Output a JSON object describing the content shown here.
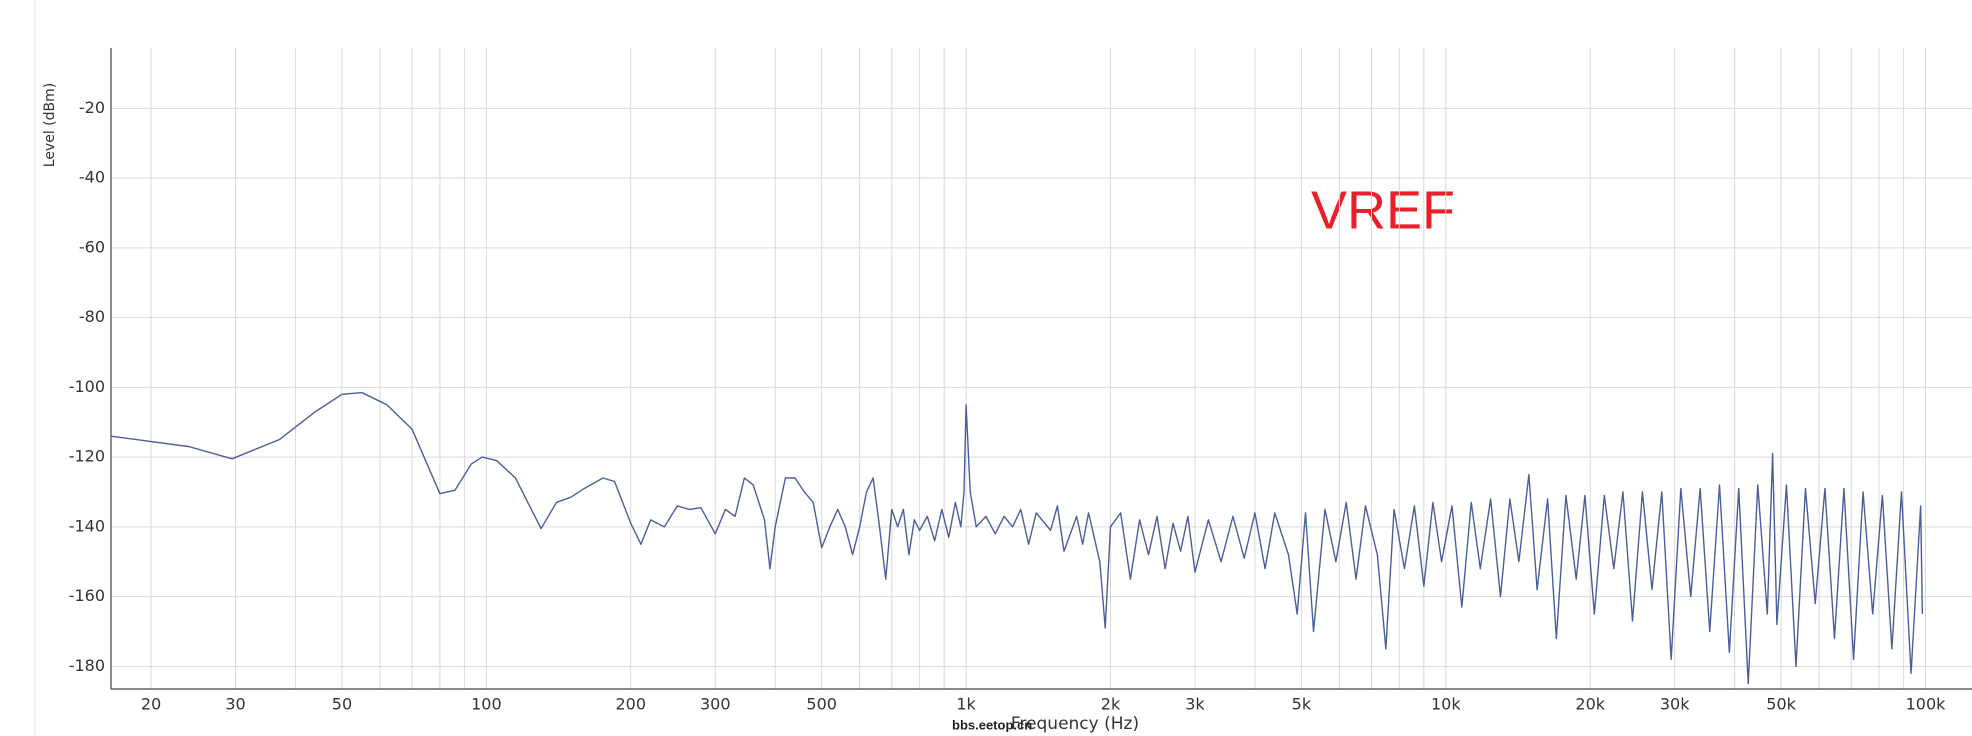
{
  "chart_data": {
    "type": "line",
    "annotation": "VREF",
    "watermark": "bbs.eetop.cn",
    "xlabel": "Frequency (Hz)",
    "ylabel": "Level (dBm)",
    "log_x": true,
    "grid": true,
    "color": "#4a5f9a",
    "annotation_color": "#e8202a",
    "xlim": [
      16.5,
      125000
    ],
    "ylim": [
      -186.5,
      -2.7
    ],
    "xticks": [
      20,
      30,
      50,
      100,
      200,
      300,
      500,
      {
        "value": 1000,
        "label": "1k"
      },
      {
        "value": 2000,
        "label": "2k"
      },
      {
        "value": 3000,
        "label": "3k"
      },
      {
        "value": 5000,
        "label": "5k"
      },
      {
        "value": 10000,
        "label": "10k"
      },
      {
        "value": 20000,
        "label": "20k"
      },
      {
        "value": 30000,
        "label": "30k"
      },
      {
        "value": 50000,
        "label": "50k"
      },
      {
        "value": 100000,
        "label": "100k"
      }
    ],
    "xminor": [
      40,
      60,
      70,
      80,
      90,
      400,
      600,
      700,
      800,
      900,
      4000,
      6000,
      7000,
      8000,
      9000,
      40000,
      60000,
      70000,
      80000,
      90000
    ],
    "yticks": [
      -20,
      -40,
      -60,
      -80,
      -100,
      -120,
      -140,
      -160,
      -180
    ],
    "x": [
      16.5,
      24,
      29.5,
      37,
      44,
      50,
      55,
      62,
      70,
      80,
      86,
      93,
      98,
      105,
      115,
      130,
      140,
      150,
      160,
      175,
      185,
      200,
      210,
      220,
      235,
      250,
      265,
      280,
      300,
      315,
      330,
      345,
      360,
      380,
      390,
      400,
      420,
      440,
      460,
      480,
      500,
      520,
      540,
      560,
      580,
      600,
      620,
      640,
      660,
      680,
      700,
      720,
      740,
      760,
      780,
      800,
      830,
      860,
      890,
      920,
      950,
      975,
      990,
      1000,
      1020,
      1050,
      1100,
      1150,
      1200,
      1250,
      1300,
      1350,
      1400,
      1500,
      1550,
      1600,
      1700,
      1750,
      1800,
      1900,
      1950,
      2000,
      2100,
      2200,
      2300,
      2400,
      2500,
      2600,
      2700,
      2800,
      2900,
      3000,
      3200,
      3400,
      3600,
      3800,
      4000,
      4200,
      4400,
      4700,
      4900,
      5100,
      5300,
      5600,
      5900,
      6200,
      6500,
      6800,
      7200,
      7500,
      7800,
      8200,
      8600,
      9000,
      9400,
      9800,
      10300,
      10800,
      11300,
      11800,
      12400,
      13000,
      13600,
      14200,
      14900,
      15500,
      16300,
      17000,
      17800,
      18700,
      19500,
      20400,
      21400,
      22400,
      23400,
      24500,
      25700,
      26900,
      28200,
      29500,
      30900,
      32400,
      33900,
      35500,
      37200,
      39000,
      40800,
      42700,
      44700,
      46800,
      48000,
      49000,
      51300,
      53700,
      56200,
      58900,
      61700,
      64600,
      67600,
      70800,
      74100,
      77600,
      81300,
      85100,
      89100,
      93300,
      97700,
      98500
    ],
    "values": [
      -114,
      -117,
      -120.5,
      -115,
      -107,
      -102,
      -101.5,
      -105,
      -112,
      -130.5,
      -129.5,
      -122,
      -120,
      -121,
      -126,
      -140.5,
      -133,
      -131.5,
      -129,
      -126,
      -127,
      -139,
      -145,
      -138,
      -140,
      -134,
      -135,
      -134.5,
      -142,
      -135,
      -137,
      -126,
      -128,
      -138,
      -152,
      -140,
      -126,
      -126,
      -130,
      -133,
      -146,
      -140,
      -135,
      -140,
      -148,
      -140,
      -130,
      -126,
      -140,
      -155,
      -135,
      -140,
      -135,
      -148,
      -138,
      -141,
      -137,
      -144,
      -135,
      -143,
      -133,
      -140,
      -130,
      -105,
      -130,
      -140,
      -137,
      -142,
      -137,
      -140,
      -135,
      -145,
      -136,
      -141,
      -134,
      -147,
      -137,
      -145,
      -136,
      -150,
      -169,
      -140,
      -136,
      -155,
      -138,
      -148,
      -137,
      -152,
      -139,
      -147,
      -137,
      -153,
      -138,
      -150,
      -137,
      -149,
      -136,
      -152,
      -136,
      -148,
      -165,
      -136,
      -170,
      -135,
      -150,
      -133,
      -155,
      -134,
      -148,
      -175,
      -135,
      -152,
      -134,
      -157,
      -133,
      -150,
      -134,
      -163,
      -133,
      -152,
      -132,
      -160,
      -132,
      -150,
      -125,
      -158,
      -132,
      -172,
      -131,
      -155,
      -131,
      -165,
      -131,
      -152,
      -130,
      -167,
      -130,
      -158,
      -130,
      -178,
      -129,
      -160,
      -129,
      -170,
      -128,
      -176,
      -129,
      -185,
      -128,
      -165,
      -119,
      -168,
      -128,
      -180,
      -129,
      -162,
      -129,
      -172,
      -129,
      -178,
      -130,
      -165,
      -131,
      -175,
      -130,
      -182,
      -134,
      -165
    ]
  }
}
